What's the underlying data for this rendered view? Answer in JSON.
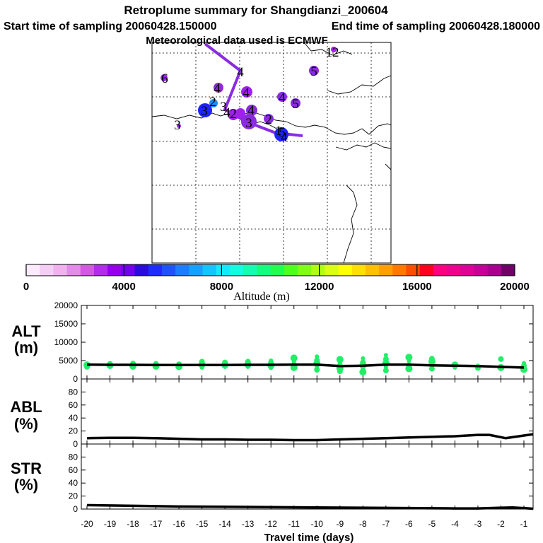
{
  "title": {
    "line1": "Retroplume summary for Shangdianzi_200604",
    "start": "Start time of sampling 20060428.150000",
    "end": "End time of sampling 20060428.180000",
    "met": "Meteorological data used is ECMWF"
  },
  "colors": {
    "purple": "#8a2be2",
    "violet": "#a020f0",
    "blue": "#1e22ff",
    "azure": "#1f8ef0",
    "green": "#22ee66",
    "black": "#000000"
  },
  "colorbar": {
    "label": "Altitude (m)",
    "tick_labels": [
      "0",
      "4000",
      "8000",
      "12000",
      "16000",
      "20000"
    ],
    "tick_values": [
      0,
      4000,
      8000,
      12000,
      16000,
      20000
    ],
    "range": [
      0,
      20000
    ],
    "colors": [
      "#fbeafb",
      "#f5cef5",
      "#efb2ef",
      "#e48ae8",
      "#d05ae0",
      "#b02ee8",
      "#9400ee",
      "#7400f0",
      "#2a0ce0",
      "#1e2cff",
      "#1e52ff",
      "#1e7cff",
      "#16a0ff",
      "#10c6ff",
      "#10eaff",
      "#10ffe0",
      "#10ffb0",
      "#10ff80",
      "#20ff50",
      "#50ff20",
      "#80ff10",
      "#b0ff10",
      "#daff10",
      "#ffff00",
      "#ffe000",
      "#ffc000",
      "#ffa000",
      "#ff7800",
      "#ff4c00",
      "#ff0020",
      "#ff0080",
      "#f0008c",
      "#e00098",
      "#c80098",
      "#a80090",
      "#700068"
    ]
  },
  "map_labels": [
    "6",
    "4",
    "4",
    "5",
    "4",
    "5",
    "3",
    "2",
    "3",
    "2",
    "4",
    "3",
    "4",
    "4",
    "5",
    "2",
    "1",
    "4",
    "12",
    "3"
  ],
  "chart_data": [
    {
      "type": "scatter",
      "name": "ALT",
      "ylabel": [
        "ALT",
        "(m)"
      ],
      "ylim": [
        0,
        20000
      ],
      "y_ticks": [
        0,
        5000,
        10000,
        15000,
        20000
      ],
      "y_tick_labels": [
        "0",
        "5000",
        "10000",
        "15000",
        "20000"
      ],
      "xlim": [
        -20,
        -0.3
      ],
      "x": [
        -20,
        -19,
        -18,
        -17,
        -16,
        -15,
        -14,
        -13,
        -12,
        -11,
        -10,
        -9,
        -8,
        -7,
        -6,
        -5,
        -4,
        -3,
        -2,
        -1
      ],
      "median": [
        3900,
        3850,
        3850,
        3800,
        3800,
        3800,
        3800,
        3850,
        3850,
        3900,
        3900,
        3500,
        3600,
        3900,
        3900,
        3700,
        3600,
        3500,
        3300,
        3100
      ],
      "cluster_points": [
        [
          -20.0,
          3800
        ],
        [
          -20.0,
          3300
        ],
        [
          -20.0,
          4200
        ],
        [
          -19.0,
          3700
        ],
        [
          -19.0,
          4100
        ],
        [
          -19.0,
          3300
        ],
        [
          -18.0,
          3500
        ],
        [
          -18.0,
          4200
        ],
        [
          -18.0,
          3100
        ],
        [
          -17.0,
          3500
        ],
        [
          -17.0,
          4100
        ],
        [
          -17.0,
          3100
        ],
        [
          -16.0,
          3400
        ],
        [
          -16.0,
          4000
        ],
        [
          -15.0,
          3100
        ],
        [
          -15.0,
          3900
        ],
        [
          -15.0,
          4700
        ],
        [
          -14.0,
          3300
        ],
        [
          -14.0,
          3800
        ],
        [
          -14.0,
          4500
        ],
        [
          -13.0,
          3300
        ],
        [
          -13.0,
          3900
        ],
        [
          -13.0,
          4700
        ],
        [
          -12.0,
          3000
        ],
        [
          -12.0,
          3700
        ],
        [
          -12.0,
          4400
        ],
        [
          -12.0,
          5000
        ],
        [
          -11.0,
          3100
        ],
        [
          -11.0,
          3800
        ],
        [
          -11.0,
          4700
        ],
        [
          -11.0,
          5700
        ],
        [
          -10.0,
          2500
        ],
        [
          -10.0,
          3400
        ],
        [
          -10.0,
          4200
        ],
        [
          -10.0,
          5100
        ],
        [
          -10.0,
          6100
        ],
        [
          -9.0,
          2900
        ],
        [
          -9.0,
          3700
        ],
        [
          -9.0,
          4500
        ],
        [
          -9.0,
          5300
        ],
        [
          -9.0,
          2100
        ],
        [
          -8.0,
          2900
        ],
        [
          -8.0,
          3700
        ],
        [
          -8.0,
          4500
        ],
        [
          -8.0,
          5600
        ],
        [
          -8.0,
          1900
        ],
        [
          -7.0,
          2300
        ],
        [
          -7.0,
          3300
        ],
        [
          -7.0,
          4300
        ],
        [
          -7.0,
          5400
        ],
        [
          -7.0,
          6500
        ],
        [
          -6.0,
          2800
        ],
        [
          -6.0,
          3700
        ],
        [
          -6.0,
          4900
        ],
        [
          -6.0,
          5900
        ],
        [
          -5.0,
          2800
        ],
        [
          -5.0,
          3600
        ],
        [
          -5.0,
          4700
        ],
        [
          -5.0,
          5500
        ],
        [
          -4.0,
          3100
        ],
        [
          -4.0,
          3800
        ],
        [
          -3.0,
          3000
        ],
        [
          -3.0,
          3600
        ],
        [
          -2.0,
          3100
        ],
        [
          -2.0,
          5400
        ],
        [
          -1.0,
          3000
        ],
        [
          -1.0,
          2600
        ],
        [
          -1.0,
          3600
        ],
        [
          -1.0,
          4300
        ]
      ]
    },
    {
      "type": "line",
      "name": "ABL",
      "ylabel": [
        "ABL",
        "(%)"
      ],
      "ylim": [
        0,
        100
      ],
      "y_ticks": [
        0,
        20,
        40,
        60,
        80
      ],
      "y_tick_labels": [
        "0",
        "20",
        "40",
        "60",
        "80"
      ],
      "x": [
        -20,
        -19,
        -18,
        -17,
        -16,
        -15,
        -14,
        -13,
        -12,
        -11,
        -10,
        -9,
        -8,
        -7,
        -6,
        -5,
        -4,
        -3,
        -2.5,
        -1.8,
        -1,
        -0.6
      ],
      "values": [
        9,
        9.5,
        9.5,
        9,
        8,
        7,
        7,
        6.5,
        6.5,
        6,
        6,
        7,
        8,
        9,
        10,
        11,
        12,
        14,
        14,
        9,
        13,
        15
      ]
    },
    {
      "type": "line",
      "name": "STR",
      "ylabel": [
        "STR",
        "(%)"
      ],
      "ylim": [
        0,
        100
      ],
      "y_ticks": [
        0,
        20,
        40,
        60,
        80
      ],
      "y_tick_labels": [
        "0",
        "20",
        "40",
        "60",
        "80"
      ],
      "xlabel": "Travel time (days)",
      "x_ticks": [
        -20,
        -19,
        -18,
        -17,
        -16,
        -15,
        -14,
        -13,
        -12,
        -11,
        -10,
        -9,
        -8,
        -7,
        -6,
        -5,
        -4,
        -3,
        -2,
        -1
      ],
      "x_tick_labels": [
        "-20",
        "-19",
        "-18",
        "-17",
        "-16",
        "-15",
        "-14",
        "-13",
        "-12",
        "-11",
        "-10",
        "-9",
        "-8",
        "-7",
        "-6",
        "-5",
        "-4",
        "-3",
        "-2",
        "-1"
      ],
      "x": [
        -20,
        -18,
        -16,
        -14,
        -12,
        -10,
        -8,
        -6,
        -4,
        -3,
        -2,
        -1.5,
        -1,
        -0.6
      ],
      "values": [
        6,
        5,
        4,
        3.5,
        3,
        2.5,
        2,
        1.5,
        1,
        1,
        2,
        2.5,
        1.5,
        0.5
      ]
    }
  ]
}
